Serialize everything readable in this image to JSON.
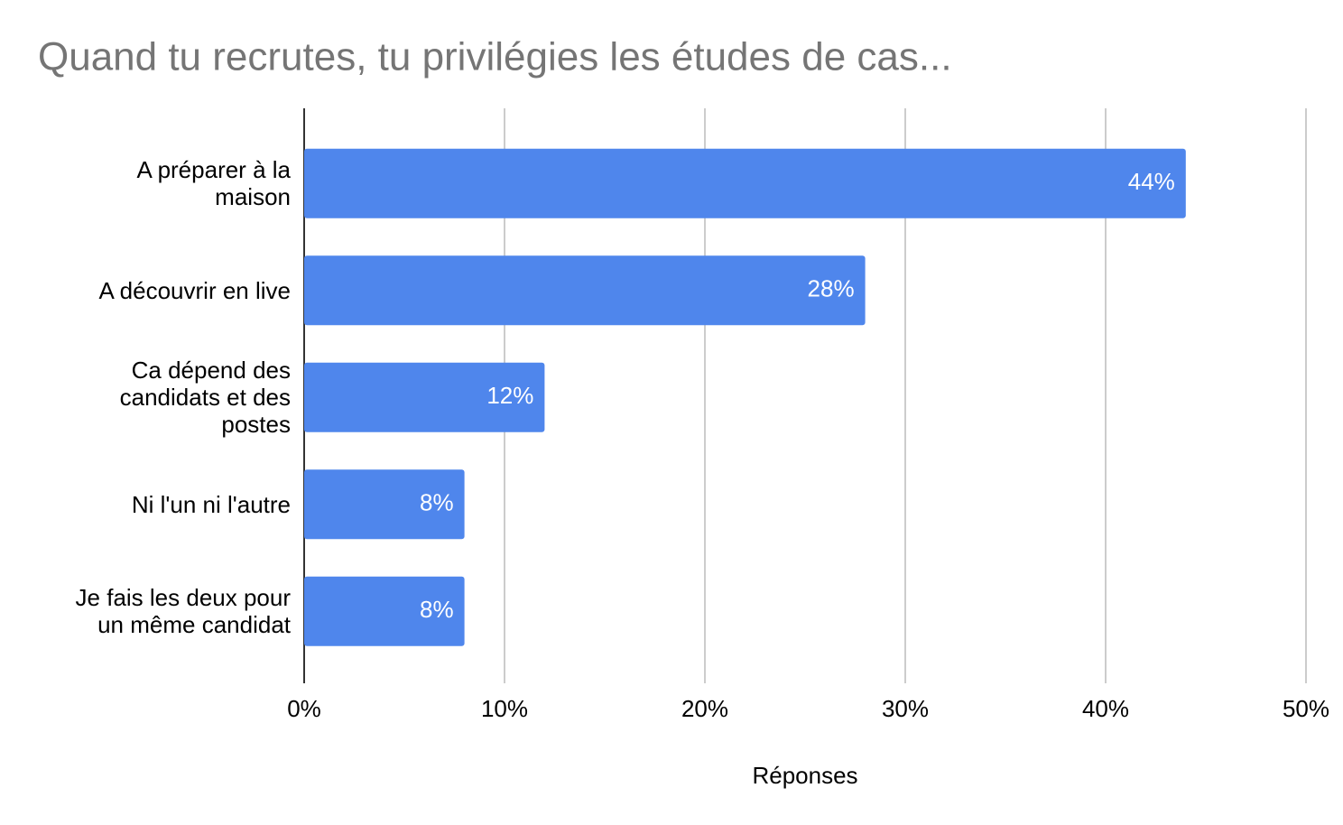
{
  "chart_data": {
    "type": "bar",
    "orientation": "horizontal",
    "title": "Quand tu recrutes, tu privilégies les études de cas...",
    "x_label": "Réponses",
    "categories": [
      "A préparer à la\nmaison",
      "A découvrir en live",
      "Ca dépend des\ncandidats et des\npostes",
      "Ni l'un ni l'autre",
      "Je fais les deux pour\nun même candidat"
    ],
    "values": [
      44,
      28,
      12,
      8,
      8
    ],
    "value_labels": [
      "44%",
      "28%",
      "12%",
      "8%",
      "8%"
    ],
    "color": "#4f86ec",
    "xlim": [
      0,
      50
    ],
    "xticks": [
      {
        "value": 0,
        "label": "0%"
      },
      {
        "value": 10,
        "label": "10%"
      },
      {
        "value": 20,
        "label": "20%"
      },
      {
        "value": 30,
        "label": "30%"
      },
      {
        "value": 40,
        "label": "40%"
      },
      {
        "value": 50,
        "label": "50%"
      }
    ],
    "grid": true
  }
}
